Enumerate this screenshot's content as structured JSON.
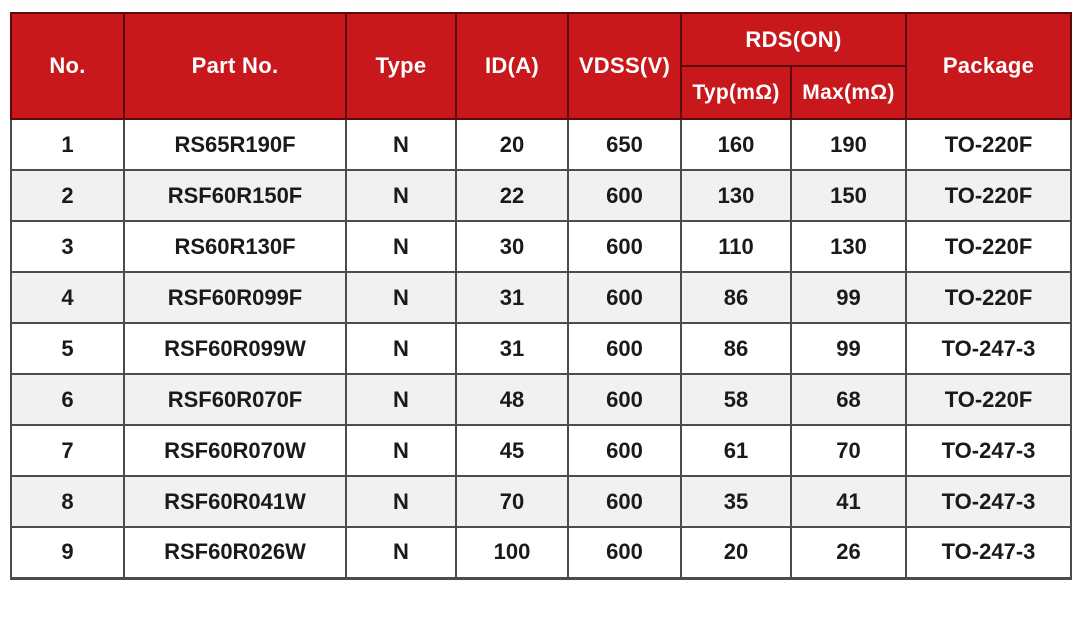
{
  "table": {
    "header": {
      "no": "No.",
      "part_no": "Part No.",
      "type": "Type",
      "id_a": "ID(A)",
      "vdss": "VDSS(V)",
      "rds_on": "RDS(ON)",
      "typ": "Typ(mΩ)",
      "max": "Max(mΩ)",
      "package": "Package"
    },
    "rows": [
      [
        "1",
        "RS65R190F",
        "N",
        "20",
        "650",
        "160",
        "190",
        "TO-220F"
      ],
      [
        "2",
        "RSF60R150F",
        "N",
        "22",
        "600",
        "130",
        "150",
        "TO-220F"
      ],
      [
        "3",
        "RS60R130F",
        "N",
        "30",
        "600",
        "110",
        "130",
        "TO-220F"
      ],
      [
        "4",
        "RSF60R099F",
        "N",
        "31",
        "600",
        "86",
        "99",
        "TO-220F"
      ],
      [
        "5",
        "RSF60R099W",
        "N",
        "31",
        "600",
        "86",
        "99",
        "TO-247-3"
      ],
      [
        "6",
        "RSF60R070F",
        "N",
        "48",
        "600",
        "58",
        "68",
        "TO-220F"
      ],
      [
        "7",
        "RSF60R070W",
        "N",
        "45",
        "600",
        "61",
        "70",
        "TO-247-3"
      ],
      [
        "8",
        "RSF60R041W",
        "N",
        "70",
        "600",
        "35",
        "41",
        "TO-247-3"
      ],
      [
        "9",
        "RSF60R026W",
        "N",
        "100",
        "600",
        "20",
        "26",
        "TO-247-3"
      ]
    ]
  },
  "colors": {
    "header_bg": "#c9181c",
    "header_border": "#5c0c0e",
    "grid_border": "#4c4c4c",
    "row_alt_bg": "#f1f1f1",
    "header_text": "#ffffff",
    "body_text": "#1a1a1a"
  }
}
